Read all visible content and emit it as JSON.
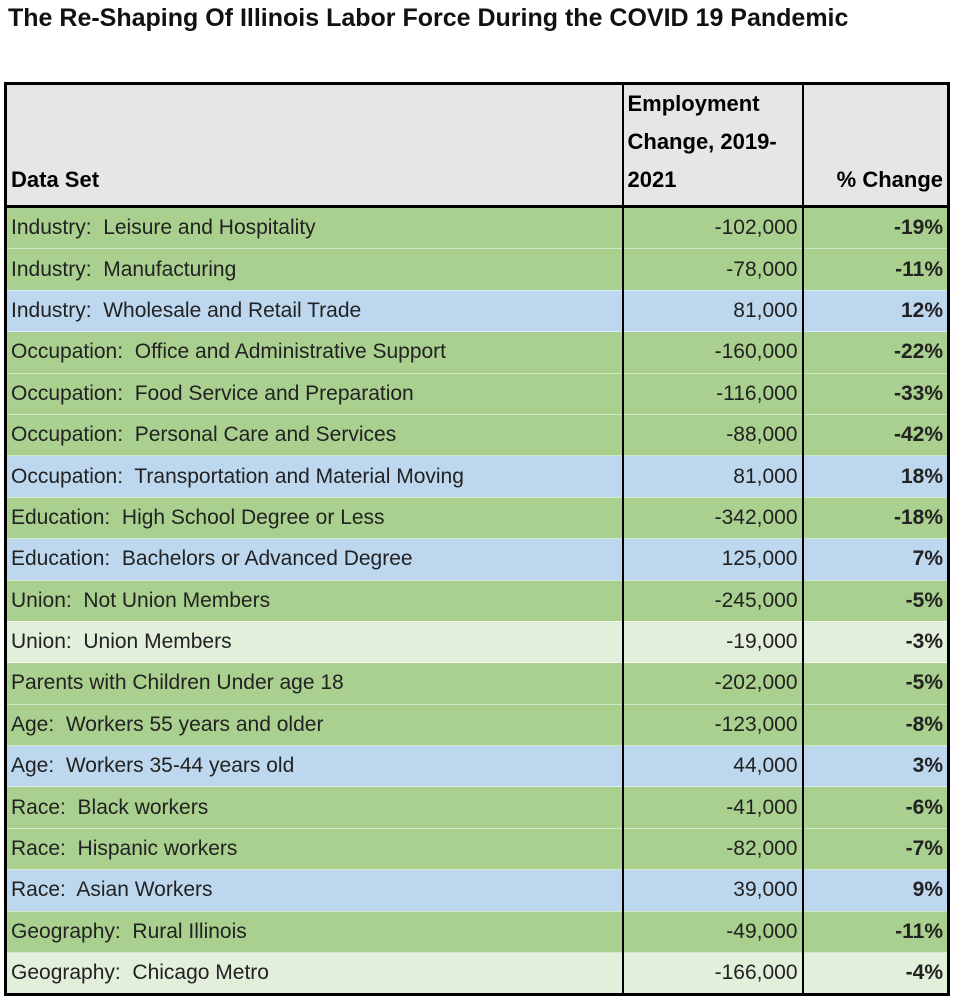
{
  "title": "The Re-Shaping Of Illinois Labor Force During the COVID 19 Pandemic",
  "table": {
    "headers": [
      "Data Set",
      "Employment Change, 2019-2021",
      "% Change"
    ],
    "rows": [
      [
        "Industry:  Leisure and Hospitality",
        "-102,000",
        "-19%"
      ],
      [
        "Industry:  Manufacturing",
        "-78,000",
        "-11%"
      ],
      [
        "Industry:  Wholesale and Retail Trade",
        "81,000",
        "12%"
      ],
      [
        "Occupation:  Office and Administrative Support",
        "-160,000",
        "-22%"
      ],
      [
        "Occupation:  Food Service and Preparation",
        "-116,000",
        "-33%"
      ],
      [
        "Occupation:  Personal Care and Services",
        "-88,000",
        "-42%"
      ],
      [
        "Occupation:  Transportation and Material Moving",
        "81,000",
        "18%"
      ],
      [
        "Education:  High School Degree or Less",
        "-342,000",
        "-18%"
      ],
      [
        "Education:  Bachelors or Advanced Degree",
        "125,000",
        "7%"
      ],
      [
        "Union:  Not Union Members",
        "-245,000",
        "-5%"
      ],
      [
        "Union:  Union Members",
        "-19,000",
        "-3%"
      ],
      [
        "Parents with Children Under age 18",
        "-202,000",
        "-5%"
      ],
      [
        "Age:  Workers 55 years and older",
        "-123,000",
        "-8%"
      ],
      [
        "Age:  Workers 35-44 years old",
        "44,000",
        "3%"
      ],
      [
        "Race:  Black workers",
        "-41,000",
        "-6%"
      ],
      [
        "Race:  Hispanic workers",
        "-82,000",
        "-7%"
      ],
      [
        "Race:  Asian Workers",
        "39,000",
        "9%"
      ],
      [
        "Geography:  Rural Illinois",
        "-49,000",
        "-11%"
      ],
      [
        "Geography:  Chicago Metro",
        "-166,000",
        "-4%"
      ]
    ],
    "row_colors": [
      "#a9d08e",
      "#a9d08e",
      "#bdd7ee",
      "#a9d08e",
      "#a9d08e",
      "#a9d08e",
      "#bdd7ee",
      "#a9d08e",
      "#bdd7ee",
      "#a9d08e",
      "#e2efda",
      "#a9d08e",
      "#a9d08e",
      "#bdd7ee",
      "#a9d08e",
      "#a9d08e",
      "#bdd7ee",
      "#a9d08e",
      "#e2efda"
    ]
  }
}
